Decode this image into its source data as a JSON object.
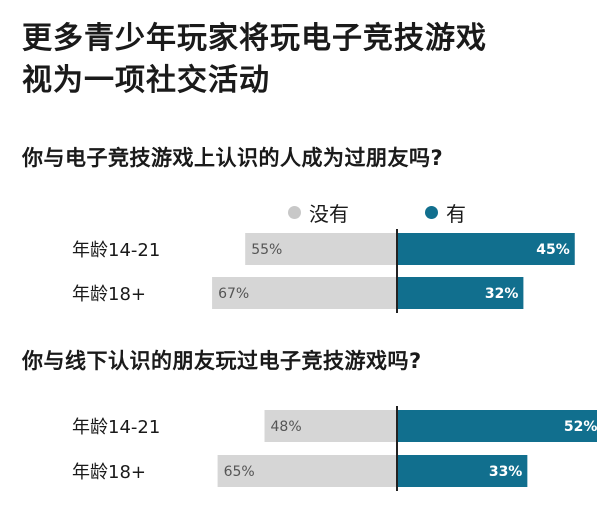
{
  "title_lines": [
    "更多青少年玩家将玩电子竞技游戏",
    "视为一项社交活动"
  ],
  "legend": {
    "no": "没有",
    "yes": "有"
  },
  "colors": {
    "no": "#d6d6d6",
    "yes": "#116f8e",
    "no_dot": "#c8c8c8"
  },
  "chart_data": [
    {
      "type": "bar",
      "title": "你与电子竞技游戏上认识的人成为过朋友吗?",
      "categories": [
        "年龄14-21",
        "年龄18+"
      ],
      "series": [
        {
          "name": "没有",
          "values": [
            55,
            67
          ]
        },
        {
          "name": "有",
          "values": [
            45,
            32
          ]
        }
      ],
      "value_labels": {
        "没有": [
          "55%",
          "67%"
        ],
        "有": [
          "45%",
          "32%"
        ]
      },
      "legend_position": "top-right"
    },
    {
      "type": "bar",
      "title": "你与线下认识的朋友玩过电子竞技游戏吗?",
      "categories": [
        "年龄14-21",
        "年龄18+"
      ],
      "series": [
        {
          "name": "没有",
          "values": [
            48,
            65
          ]
        },
        {
          "name": "有",
          "values": [
            52,
            33
          ]
        }
      ],
      "value_labels": {
        "没有": [
          "48%",
          "65%"
        ],
        "有": [
          "52%",
          "33%"
        ]
      }
    }
  ]
}
